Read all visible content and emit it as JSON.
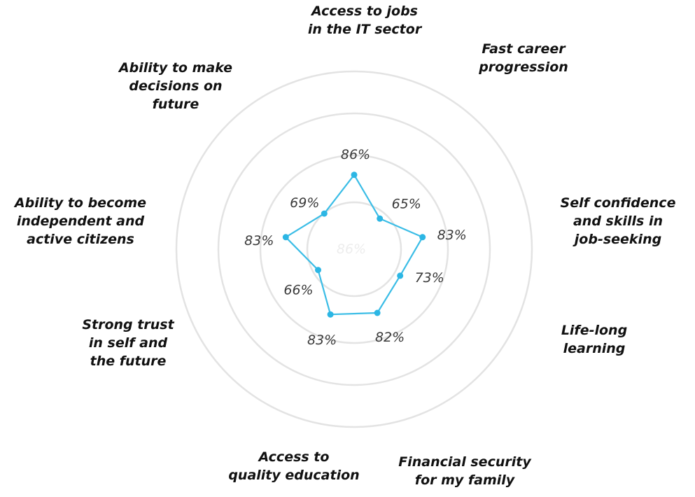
{
  "chart_data": {
    "type": "radar",
    "scale": {
      "min": 0,
      "max": 100,
      "unit": "%"
    },
    "rings": 4,
    "grid": true,
    "colors": {
      "series": "#3bbde6",
      "point": "#2cb6e4",
      "grid": "#e3e3e3"
    },
    "categories": [
      "Access to jobs in the IT sector",
      "Fast career progression",
      "Self confidence and skills in job-seeking",
      "Life-long learning",
      "Financial security for my family",
      "Access to quality education",
      "Strong trust in self and the future",
      "Ability to become independent and active citizens",
      "Ability to make decisions on future"
    ],
    "axis_labels": [
      [
        "Access to jobs",
        "in the IT sector"
      ],
      [
        "Fast career",
        "progression"
      ],
      [
        "Self confidence",
        "and skills in",
        "job-seeking"
      ],
      [
        "Life-long",
        "learning"
      ],
      [
        "Financial security",
        "for my family"
      ],
      [
        "Access to",
        "quality education"
      ],
      [
        "Strong trust",
        "in self and",
        "the future"
      ],
      [
        "Ability to become",
        "independent and",
        "active citizens"
      ],
      [
        "Ability to make",
        "decisions on",
        "future"
      ]
    ],
    "values": [
      86,
      65,
      83,
      73,
      82,
      83,
      66,
      83,
      69
    ],
    "value_labels": [
      "86%",
      "65%",
      "83%",
      "73%",
      "82%",
      "83%",
      "66%",
      "83%",
      "69%"
    ],
    "faint_center_label": "86%"
  }
}
